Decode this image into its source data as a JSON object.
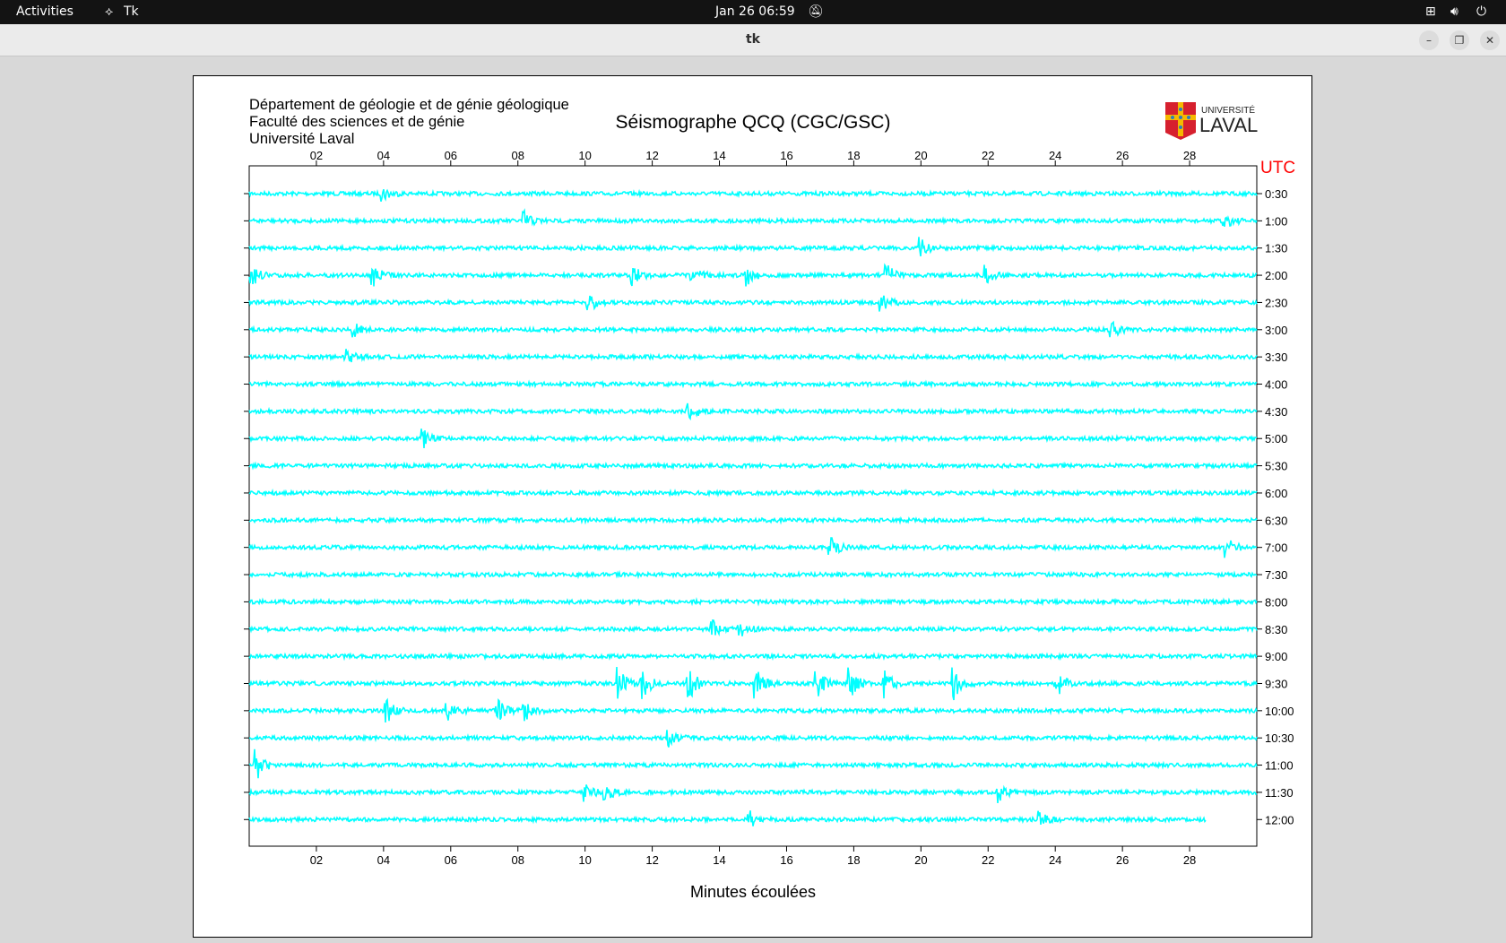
{
  "topbar": {
    "activities": "Activities",
    "app": "Tk",
    "clock": "Jan 26  06:59",
    "icons": [
      "tk-app-icon",
      "bell-muted-icon",
      "network-icon",
      "volume-icon",
      "power-icon"
    ]
  },
  "window": {
    "title": "tk",
    "buttons": [
      "minimize",
      "restore",
      "close"
    ]
  },
  "header": {
    "line1": "Département de géologie et de génie géologique",
    "line2": "Faculté des sciences et de génie",
    "line3": "Université Laval",
    "logo_text": [
      "UNIVERSITÉ",
      "LAVAL"
    ]
  },
  "colors": {
    "trace": "#00ffff",
    "utc": "#ff0000"
  },
  "chart_data": {
    "type": "line",
    "title": "Séismographe QCQ (CGC/GSC)",
    "xlabel": "Minutes écoulées",
    "ylabel_right": "UTC",
    "xlim": [
      0,
      30
    ],
    "xticks": [
      "02",
      "04",
      "06",
      "08",
      "10",
      "12",
      "14",
      "16",
      "18",
      "20",
      "22",
      "24",
      "26",
      "28"
    ],
    "xtick_values": [
      2,
      4,
      6,
      8,
      10,
      12,
      14,
      16,
      18,
      20,
      22,
      24,
      26,
      28
    ],
    "rows": [
      "0:30",
      "1:00",
      "1:30",
      "2:00",
      "2:30",
      "3:00",
      "3:30",
      "4:00",
      "4:30",
      "5:00",
      "5:30",
      "6:00",
      "6:30",
      "7:00",
      "7:30",
      "8:00",
      "8:30",
      "9:00",
      "9:30",
      "10:00",
      "10:30",
      "11:00",
      "11:30",
      "12:00"
    ],
    "last_row_end_minute": 28.5,
    "events": [
      {
        "row": "0:30",
        "minutes": [
          4.0
        ],
        "amp": 1.5
      },
      {
        "row": "1:00",
        "minutes": [
          8.2,
          29.0
        ],
        "amp": 2
      },
      {
        "row": "1:30",
        "minutes": [
          20.0
        ],
        "amp": 2.2
      },
      {
        "row": "2:00",
        "minutes": [
          0.1,
          3.7,
          11.4,
          13.2,
          14.8,
          19.0,
          21.9
        ],
        "amp": 2.2
      },
      {
        "row": "2:30",
        "minutes": [
          10.1,
          18.8
        ],
        "amp": 2.2
      },
      {
        "row": "3:00",
        "minutes": [
          3.1,
          25.7
        ],
        "amp": 1.6
      },
      {
        "row": "3:30",
        "minutes": [
          2.9
        ],
        "amp": 1.6
      },
      {
        "row": "4:30",
        "minutes": [
          13.1
        ],
        "amp": 2.2
      },
      {
        "row": "5:00",
        "minutes": [
          5.2
        ],
        "amp": 1.8
      },
      {
        "row": "7:00",
        "minutes": [
          17.3,
          29.1
        ],
        "amp": 2.2
      },
      {
        "row": "8:30",
        "minutes": [
          13.8,
          14.6
        ],
        "amp": 1.8
      },
      {
        "row": "9:30",
        "minutes": [
          11.0,
          11.7,
          13.1,
          15.1,
          16.9,
          17.9,
          18.9,
          21.0,
          24.0
        ],
        "amp": 3.5
      },
      {
        "row": "10:00",
        "minutes": [
          4.1,
          5.9,
          7.4,
          8.2
        ],
        "amp": 2.5
      },
      {
        "row": "10:30",
        "minutes": [
          12.5
        ],
        "amp": 1.8
      },
      {
        "row": "11:00",
        "minutes": [
          0.2
        ],
        "amp": 3.5
      },
      {
        "row": "11:30",
        "minutes": [
          10.0,
          10.6,
          22.3
        ],
        "amp": 2.2
      },
      {
        "row": "12:00",
        "minutes": [
          14.9,
          23.5
        ],
        "amp": 1.8
      }
    ]
  }
}
